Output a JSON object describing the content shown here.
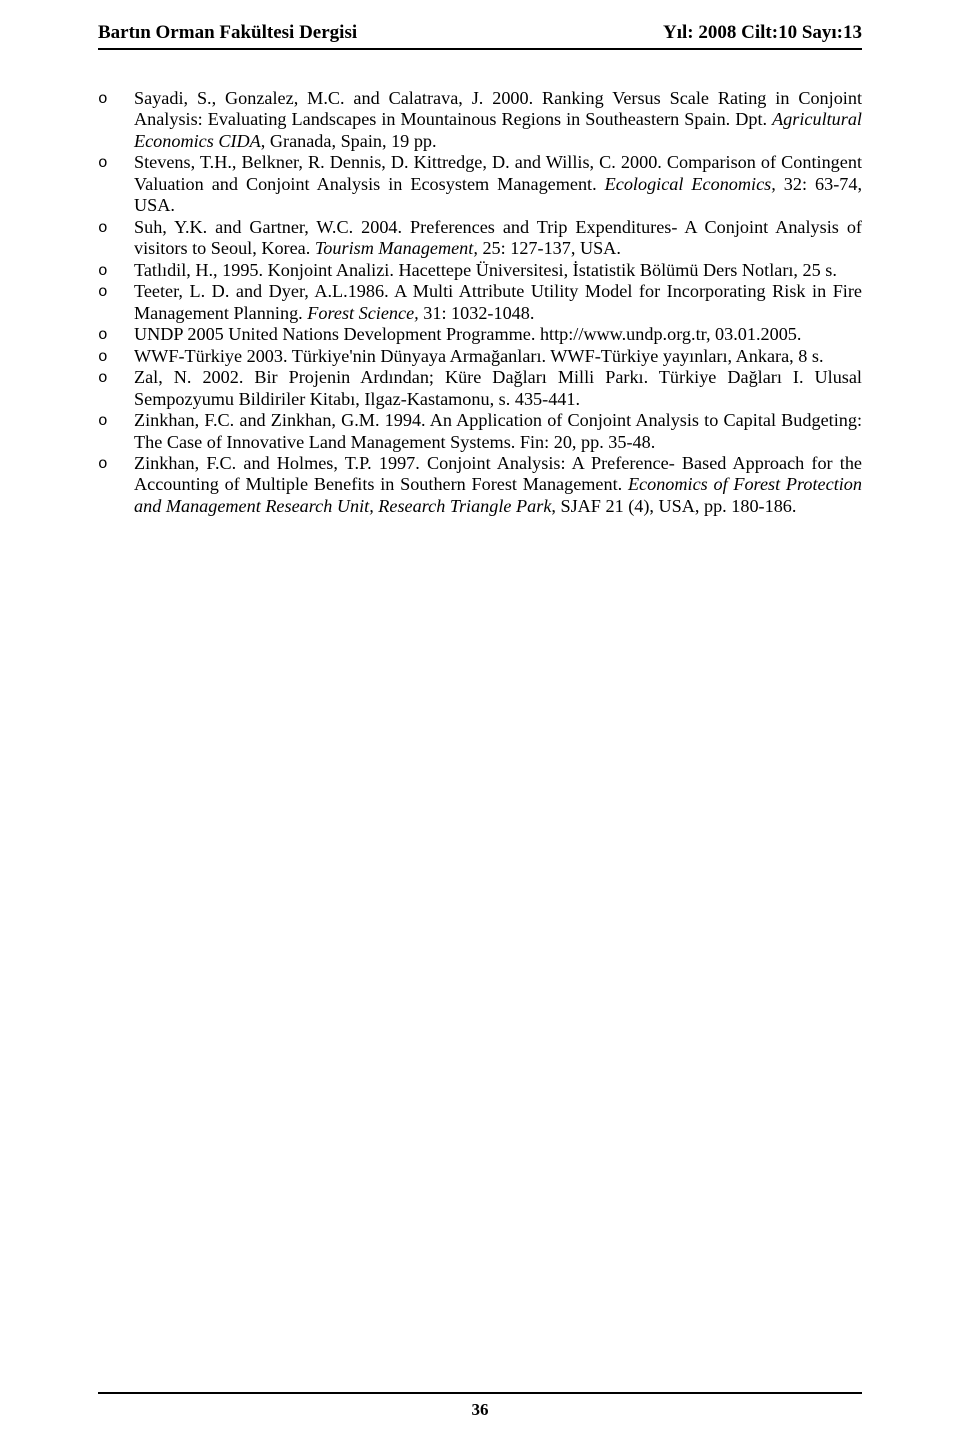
{
  "header": {
    "left": "Bartın Orman Fakültesi Dergisi",
    "right": "Yıl: 2008 Cilt:10 Sayı:13"
  },
  "bullet": "o",
  "references": [
    {
      "segments": [
        {
          "t": "Sayadi, S., Gonzalez, M.C. and Calatrava, J. 2000. Ranking Versus Scale Rating in Conjoint Analysis: Evaluating Landscapes in Mountainous Regions in Southeastern Spain. Dpt. "
        },
        {
          "t": "Agricultural Economics CIDA",
          "i": true
        },
        {
          "t": ", Granada, Spain, 19 pp."
        }
      ]
    },
    {
      "segments": [
        {
          "t": "Stevens, T.H., Belkner, R. Dennis, D. Kittredge, D. and Willis, C. 2000. Comparison of Contingent Valuation and Conjoint Analysis in Ecosystem Management. "
        },
        {
          "t": "Ecological Economics,",
          "i": true
        },
        {
          "t": " 32: 63-74, USA."
        }
      ]
    },
    {
      "segments": [
        {
          "t": "Suh, Y.K. and Gartner, W.C. 2004. Preferences and Trip Expenditures- A Conjoint Analysis of visitors to Seoul, Korea. "
        },
        {
          "t": "Tourism Management,",
          "i": true
        },
        {
          "t": " 25: 127-137, USA."
        }
      ]
    },
    {
      "segments": [
        {
          "t": "Tatlıdil, H., 1995. Konjoint Analizi. Hacettepe Üniversitesi, İstatistik Bölümü Ders Notları, 25 s."
        }
      ]
    },
    {
      "segments": [
        {
          "t": "Teeter, L. D. and Dyer, A.L.1986. A Multi Attribute Utility Model for Incorporating Risk in Fire Management Planning. "
        },
        {
          "t": "Forest Science,",
          "i": true
        },
        {
          "t": " 31: 1032-1048."
        }
      ]
    },
    {
      "segments": [
        {
          "t": "UNDP 2005 United Nations Development Programme. http://www.undp.org.tr, 03.01.2005."
        }
      ]
    },
    {
      "segments": [
        {
          "t": "WWF-Türkiye 2003. Türkiye'nin Dünyaya Armağanları. WWF-Türkiye yayınları, Ankara, 8 s."
        }
      ]
    },
    {
      "segments": [
        {
          "t": "Zal, N. 2002. Bir Projenin Ardından; Küre Dağları Milli Parkı. Türkiye Dağları I. Ulusal Sempozyumu Bildiriler Kitabı, Ilgaz-Kastamonu, s. 435-441."
        }
      ]
    },
    {
      "segments": [
        {
          "t": "Zinkhan, F.C. and Zinkhan, G.M. 1994. An Application of Conjoint Analysis to Capital Budgeting: The Case of Innovative Land Management Systems. Fin: 20, pp. 35-48."
        }
      ]
    },
    {
      "segments": [
        {
          "t": "Zinkhan, F.C. and Holmes, T.P. 1997. Conjoint Analysis: A Preference- Based Approach for the Accounting of Multiple Benefits in Southern Forest Management. "
        },
        {
          "t": "Economics of Forest Protection and Management Research Unit, Research Triangle Park",
          "i": true
        },
        {
          "t": ", SJAF 21 (4), USA, pp. 180-186."
        }
      ]
    }
  ],
  "page_number": "36"
}
